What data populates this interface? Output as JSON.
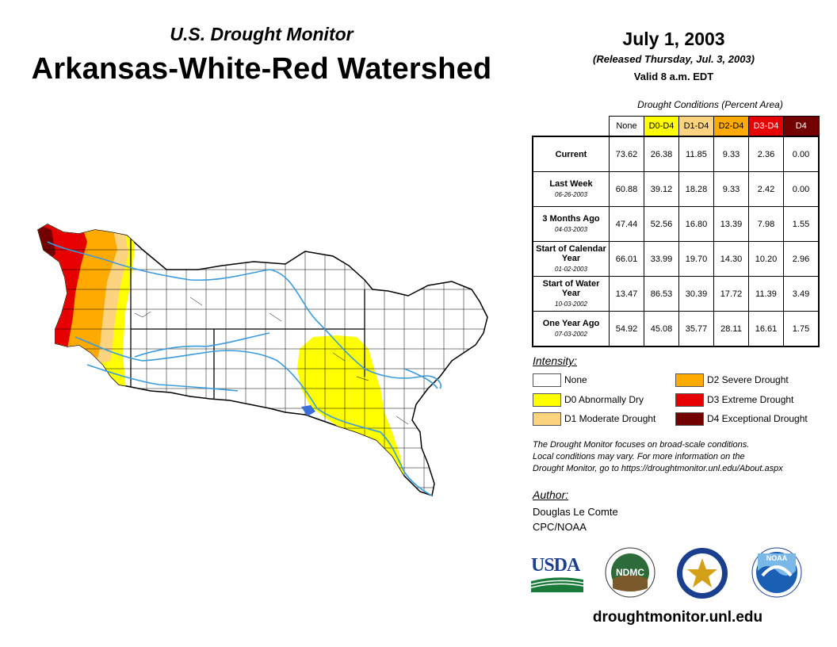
{
  "header": {
    "subtitle": "U.S. Drought Monitor",
    "title": "Arkansas-White-Red Watershed",
    "date": "July 1, 2003",
    "released": "(Released Thursday, Jul. 3, 2003)",
    "valid": "Valid 8 a.m. EDT"
  },
  "table": {
    "caption": "Drought Conditions (Percent Area)",
    "columns": [
      "None",
      "D0-D4",
      "D1-D4",
      "D2-D4",
      "D3-D4",
      "D4"
    ],
    "rows": [
      {
        "label": "Current",
        "date": "",
        "values": [
          "73.62",
          "26.38",
          "11.85",
          "9.33",
          "2.36",
          "0.00"
        ]
      },
      {
        "label": "Last Week",
        "date": "06-26-2003",
        "values": [
          "60.88",
          "39.12",
          "18.28",
          "9.33",
          "2.42",
          "0.00"
        ]
      },
      {
        "label": "3 Months Ago",
        "date": "04-03-2003",
        "values": [
          "47.44",
          "52.56",
          "16.80",
          "13.39",
          "7.98",
          "1.55"
        ]
      },
      {
        "label": "Start of Calendar Year",
        "date": "01-02-2003",
        "values": [
          "66.01",
          "33.99",
          "19.70",
          "14.30",
          "10.20",
          "2.96"
        ]
      },
      {
        "label": "Start of Water Year",
        "date": "10-03-2002",
        "values": [
          "13.47",
          "86.53",
          "30.39",
          "17.72",
          "11.39",
          "3.49"
        ]
      },
      {
        "label": "One Year Ago",
        "date": "07-03-2002",
        "values": [
          "54.92",
          "45.08",
          "35.77",
          "28.11",
          "16.61",
          "1.75"
        ]
      }
    ]
  },
  "legend": {
    "title": "Intensity:",
    "items": [
      {
        "label": "None",
        "color": "#ffffff"
      },
      {
        "label": "D0 Abnormally Dry",
        "color": "#ffff00"
      },
      {
        "label": "D1 Moderate Drought",
        "color": "#fcd37f"
      },
      {
        "label": "D2 Severe Drought",
        "color": "#ffaa00"
      },
      {
        "label": "D3 Extreme Drought",
        "color": "#e60000"
      },
      {
        "label": "D4 Exceptional Drought",
        "color": "#730000"
      }
    ]
  },
  "note": {
    "line1": "The Drought Monitor focuses on broad-scale conditions.",
    "line2": "Local conditions may vary. For more information on the",
    "line3": "Drought Monitor, go to https://droughtmonitor.unl.edu/About.aspx"
  },
  "author": {
    "label": "Author:",
    "name": "Douglas Le Comte",
    "org": "CPC/NOAA"
  },
  "logos": {
    "usda": "USDA",
    "ndmc": "NDMC",
    "noaa": "NOAA"
  },
  "website": "droughtmonitor.unl.edu",
  "colors": {
    "none": "#ffffff",
    "d0": "#ffff00",
    "d1": "#fcd37f",
    "d2": "#ffaa00",
    "d3": "#e60000",
    "d4": "#730000",
    "river": "#3a9bdc",
    "header_d0": "#ffff00",
    "header_d1": "#fcd37f",
    "header_d2": "#ffaa00",
    "header_d3": "#e60000",
    "header_d4": "#730000"
  }
}
